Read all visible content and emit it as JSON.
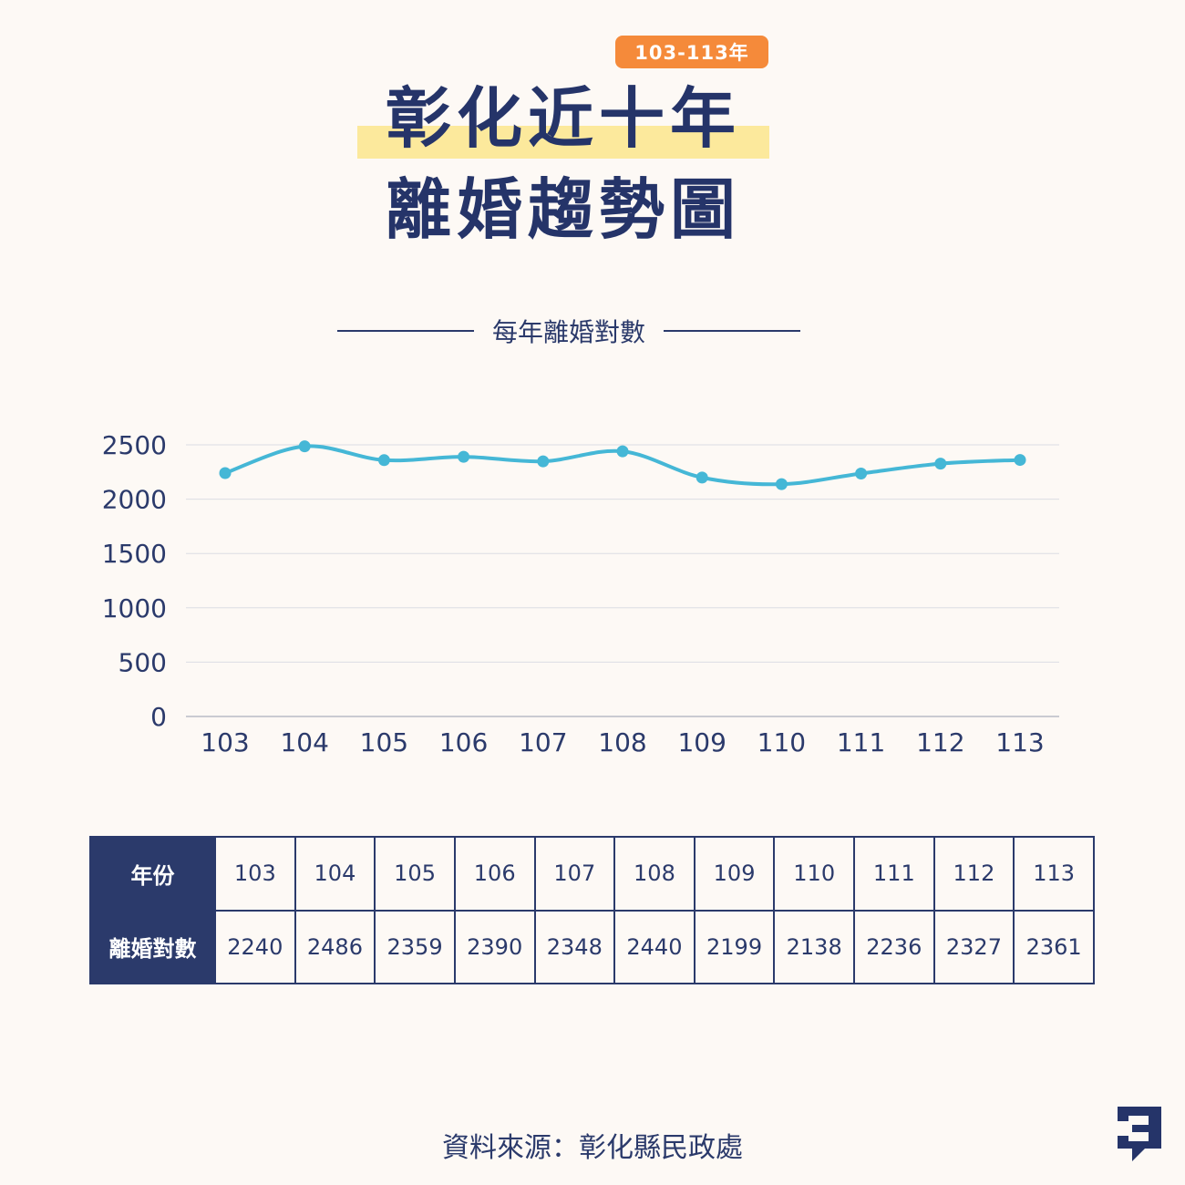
{
  "header": {
    "badge": "103-113年",
    "title_line1": "彰化近十年",
    "title_line2": "離婚趨勢圖",
    "subtitle": "每年離婚對數"
  },
  "chart_data": {
    "type": "line",
    "categories": [
      "103",
      "104",
      "105",
      "106",
      "107",
      "108",
      "109",
      "110",
      "111",
      "112",
      "113"
    ],
    "series": [
      {
        "values": [
          2240,
          2486,
          2359,
          2390,
          2348,
          2440,
          2199,
          2138,
          2236,
          2327,
          2361
        ]
      }
    ],
    "y_ticks": [
      0,
      500,
      1000,
      1500,
      2000,
      2500
    ],
    "ylim": [
      0,
      2500
    ],
    "grid": true,
    "line_color": "#45b7d6"
  },
  "table": {
    "row1_header": "年份",
    "row2_header": "離婚對數",
    "years": [
      "103",
      "104",
      "105",
      "106",
      "107",
      "108",
      "109",
      "110",
      "111",
      "112",
      "113"
    ],
    "counts": [
      "2240",
      "2486",
      "2359",
      "2390",
      "2348",
      "2440",
      "2199",
      "2138",
      "2236",
      "2327",
      "2361"
    ]
  },
  "footer": {
    "source": "資料來源：彰化縣民政處"
  },
  "colors": {
    "navy": "#2b3a6b",
    "orange": "#f58a3a",
    "highlight": "#fce99c",
    "line": "#45b7d6",
    "background": "#fdf9f5"
  },
  "icons": {
    "logo": "brand-logo-icon"
  }
}
